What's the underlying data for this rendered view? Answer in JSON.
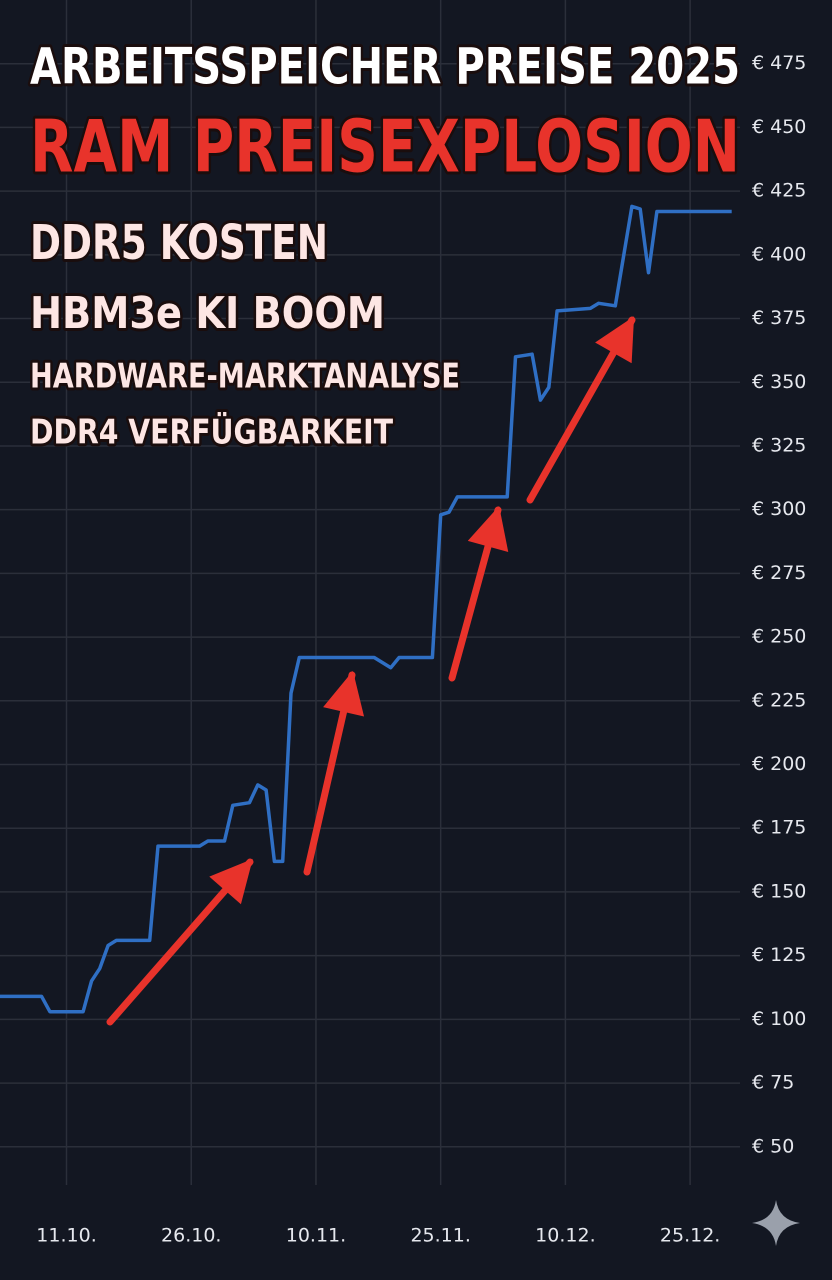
{
  "chart_data": {
    "type": "line",
    "title": "ARBEITSSPEICHER PREISE 2025",
    "subtitle": "RAM PREISEXPLOSION",
    "annotations": [
      "DDR5 KOSTEN",
      "HBM3e KI BOOM",
      "HARDWARE-MARKTANALYSE",
      "DDR4 VERFÜGBARKEIT"
    ],
    "x": [
      "03.10.",
      "08.10.",
      "09.10.",
      "13.10.",
      "14.10.",
      "15.10.",
      "16.10.",
      "17.10.",
      "21.10.",
      "22.10.",
      "27.10.",
      "28.10.",
      "30.10.",
      "31.10.",
      "02.11.",
      "03.11.",
      "04.11.",
      "05.11.",
      "06.11.",
      "07.11.",
      "08.11.",
      "17.11.",
      "19.11.",
      "20.11.",
      "24.11.",
      "25.11.",
      "26.11.",
      "27.11.",
      "03.12.",
      "04.12.",
      "06.12.",
      "07.12.",
      "08.12.",
      "09.12.",
      "13.12.",
      "14.12.",
      "16.12.",
      "18.12.",
      "19.12.",
      "20.12.",
      "21.12.",
      "30.12."
    ],
    "values": [
      109,
      109,
      103,
      103,
      115,
      120,
      129,
      131,
      131,
      168,
      168,
      170,
      170,
      184,
      185,
      192,
      190,
      162,
      162,
      228,
      242,
      242,
      238,
      242,
      242,
      298,
      299,
      305,
      305,
      360,
      361,
      343,
      348,
      378,
      379,
      381,
      380,
      419,
      418,
      393,
      417,
      417
    ],
    "color": "#2f6fc4",
    "xlim": [
      "03.10.",
      "31.12."
    ],
    "xticks": [
      "11.10.",
      "26.10.",
      "10.11.",
      "25.11.",
      "10.12.",
      "25.12."
    ],
    "ylim": [
      35,
      500
    ],
    "yticks": [
      {
        "value": 50,
        "label": "€ 50"
      },
      {
        "value": 75,
        "label": "€ 75"
      },
      {
        "value": 100,
        "label": "€ 100"
      },
      {
        "value": 125,
        "label": "€ 125"
      },
      {
        "value": 150,
        "label": "€ 150"
      },
      {
        "value": 175,
        "label": "€ 175"
      },
      {
        "value": 200,
        "label": "€ 200"
      },
      {
        "value": 225,
        "label": "€ 225"
      },
      {
        "value": 250,
        "label": "€ 250"
      },
      {
        "value": 275,
        "label": "€ 275"
      },
      {
        "value": 300,
        "label": "€ 300"
      },
      {
        "value": 325,
        "label": "€ 325"
      },
      {
        "value": 350,
        "label": "€ 350"
      },
      {
        "value": 375,
        "label": "€ 375"
      },
      {
        "value": 400,
        "label": "€ 400"
      },
      {
        "value": 425,
        "label": "€ 425"
      },
      {
        "value": 450,
        "label": "€ 450"
      },
      {
        "value": 475,
        "label": "€ 475"
      }
    ],
    "grid": true
  }
}
